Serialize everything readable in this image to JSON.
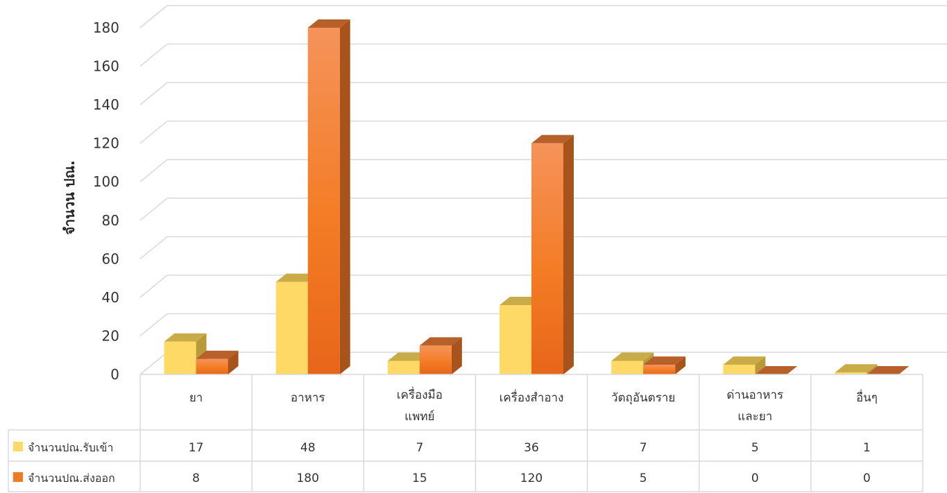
{
  "chart_data": {
    "type": "bar",
    "style": "3d-clustered-column-with-data-table",
    "ylabel": "จำนวน ปณ.",
    "ylim": [
      0,
      180
    ],
    "yticks": [
      0,
      20,
      40,
      60,
      80,
      100,
      120,
      140,
      160,
      180
    ],
    "grid": true,
    "categories": [
      [
        "ยา"
      ],
      [
        "อาหาร"
      ],
      [
        "เครื่องมือ",
        "แพทย์"
      ],
      [
        "เครื่องสำอาง"
      ],
      [
        "วัตถุอันตราย"
      ],
      [
        "ด่านอาหาร",
        "และยา"
      ],
      [
        "อื่นๆ"
      ]
    ],
    "series": [
      {
        "name": "จำนวนปณ.รับเข้า",
        "color": "#FFD966",
        "values": [
          17,
          48,
          7,
          36,
          7,
          5,
          1
        ]
      },
      {
        "name": "จำนวนปณ.ส่งออก",
        "color": "#F07A22",
        "values": [
          8,
          180,
          15,
          120,
          5,
          0,
          0
        ]
      }
    ]
  }
}
